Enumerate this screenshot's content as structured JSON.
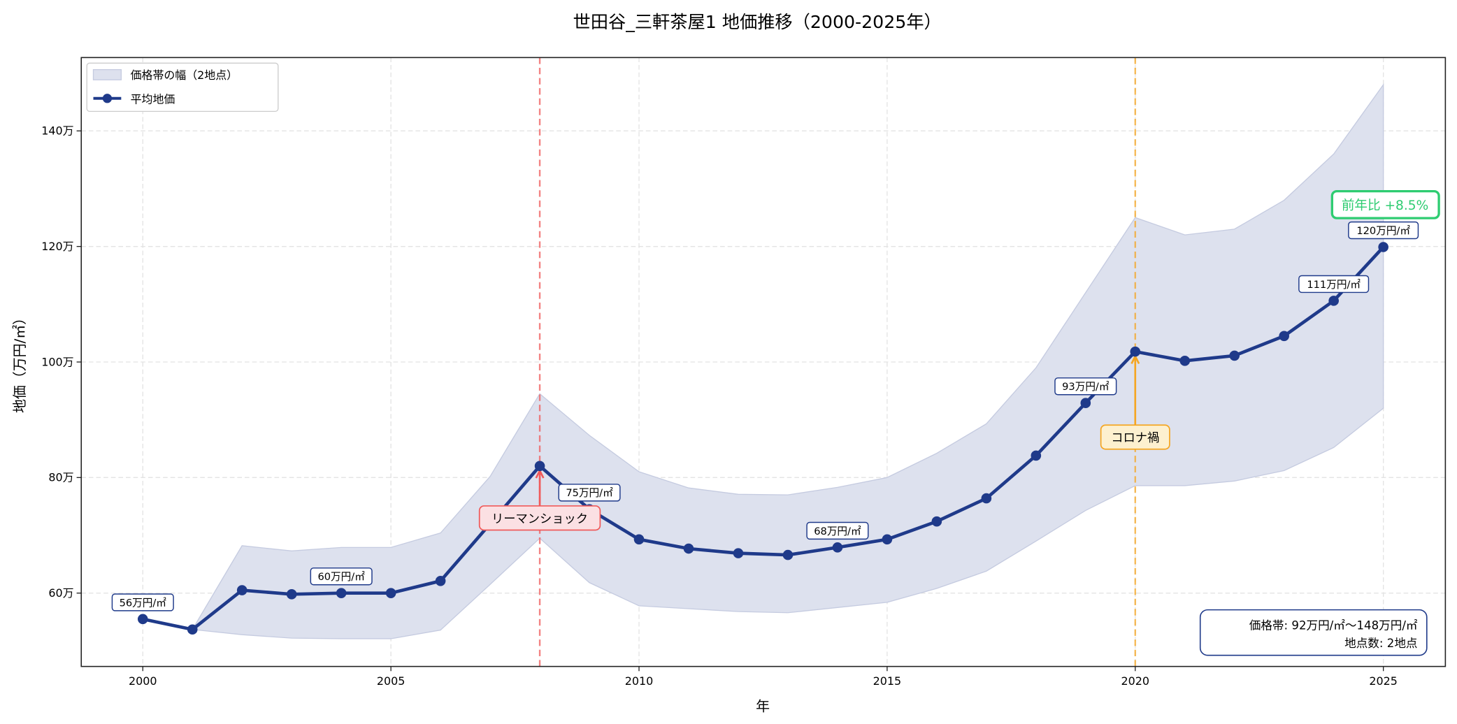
{
  "chart_data": {
    "type": "line",
    "title": "世田谷_三軒茶屋1 地価推移（2000-2025年）",
    "xlabel": "年",
    "ylabel": "地価（万円/㎡）",
    "xlim": [
      1998.76,
      2026.25
    ],
    "ylim": [
      47.3,
      152.7
    ],
    "x_ticks": [
      2000,
      2005,
      2010,
      2015,
      2020,
      2025
    ],
    "x_tick_labels": [
      "2000",
      "2005",
      "2010",
      "2015",
      "2020",
      "2025"
    ],
    "y_ticks": [
      60,
      80,
      100,
      120,
      140
    ],
    "y_tick_labels": [
      "60万",
      "80万",
      "100万",
      "120万",
      "140万"
    ],
    "grid": true,
    "legend_placement": "top-left",
    "legend": [
      "価格帯の幅（2地点）",
      "平均地価"
    ],
    "colors": {
      "line": "#1f3a8a",
      "band": "#dde1ee",
      "lehman": "#f05a5a",
      "corona": "#f5a623",
      "yoy": "#2ecc71"
    },
    "x": [
      2000,
      2001,
      2002,
      2003,
      2004,
      2005,
      2006,
      2007,
      2008,
      2009,
      2010,
      2011,
      2012,
      2013,
      2014,
      2015,
      2016,
      2017,
      2018,
      2019,
      2020,
      2021,
      2022,
      2023,
      2024,
      2025
    ],
    "series": [
      {
        "name": "平均地価",
        "values": [
          55.5,
          53.7,
          60.5,
          59.8,
          60.0,
          60.0,
          62.1,
          72.0,
          82.0,
          74.5,
          69.3,
          67.7,
          66.9,
          66.6,
          67.9,
          69.3,
          72.4,
          76.4,
          83.8,
          92.9,
          101.8,
          100.2,
          101.1,
          104.5,
          110.6,
          119.9
        ]
      }
    ],
    "band": {
      "name": "価格帯の幅（2地点）",
      "x": [
        2001,
        2002,
        2003,
        2004,
        2005,
        2006,
        2007,
        2008,
        2009,
        2010,
        2011,
        2012,
        2013,
        2014,
        2015,
        2016,
        2017,
        2018,
        2019,
        2020,
        2021,
        2022,
        2023,
        2024,
        2025
      ],
      "upper": [
        53.7,
        68.2,
        67.3,
        67.9,
        67.9,
        70.4,
        80.2,
        94.5,
        87.3,
        81.0,
        78.2,
        77.1,
        77.0,
        78.3,
        80.0,
        84.2,
        89.3,
        99.0,
        112.0,
        125.0,
        122.0,
        123.0,
        128.0,
        136.0,
        148.0
      ],
      "lower": [
        53.7,
        52.8,
        52.2,
        52.1,
        52.1,
        53.6,
        61.5,
        69.5,
        61.8,
        57.8,
        57.3,
        56.8,
        56.6,
        57.5,
        58.4,
        60.8,
        63.8,
        69.0,
        74.3,
        78.6,
        78.6,
        79.4,
        81.2,
        85.2,
        92.0
      ]
    },
    "point_labels": [
      {
        "x": 2000,
        "text": "56万円/㎡"
      },
      {
        "x": 2004,
        "text": "60万円/㎡"
      },
      {
        "x": 2009,
        "text": "75万円/㎡"
      },
      {
        "x": 2014,
        "text": "68万円/㎡"
      },
      {
        "x": 2019,
        "text": "93万円/㎡"
      },
      {
        "x": 2024,
        "text": "111万円/㎡"
      },
      {
        "x": 2025,
        "text": "120万円/㎡"
      }
    ],
    "events": [
      {
        "x": 2008,
        "text": "リーマンショック",
        "label_y": 73.0
      },
      {
        "x": 2020,
        "text": "コロナ禍",
        "label_y": 87.0
      }
    ],
    "yoy_label": "前年比 +8.5%",
    "info_box": [
      "価格帯: 92万円/㎡〜148万円/㎡",
      "地点数: 2地点"
    ]
  }
}
